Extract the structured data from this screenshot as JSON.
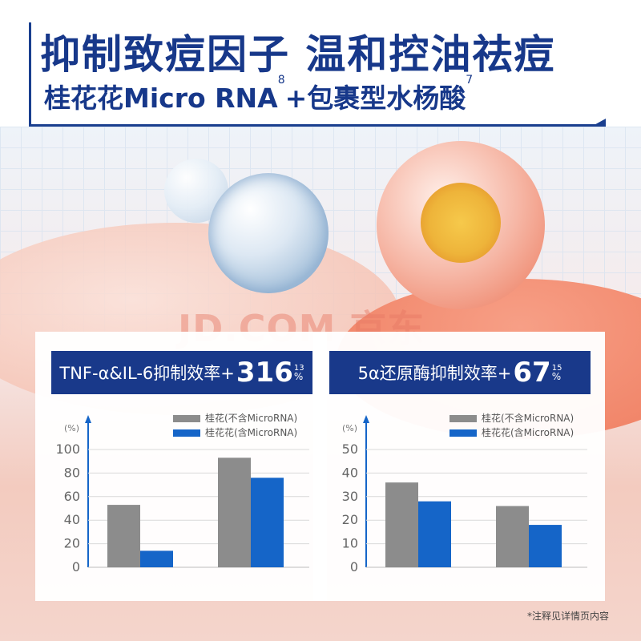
{
  "header": {
    "title": "抑制致痘因子 温和控油祛痘",
    "subtitle_main_a": "桂花花Micro RNA",
    "subtitle_sup_a": "8",
    "subtitle_main_b": "+包裹型水杨酸",
    "subtitle_sup_b": "7"
  },
  "watermark": "JD.COM 京东",
  "colors": {
    "gray": "#8c8c8c",
    "blue": "#1565c8",
    "navy": "#19398a"
  },
  "chart_data": [
    {
      "type": "bar",
      "header_text": "TNF-α&IL-6抑制效率+",
      "header_value": "316",
      "header_unit": "%",
      "header_sup": "13",
      "ylabel": "(%)",
      "ylim": [
        0,
        100
      ],
      "yticks": [
        0,
        20,
        40,
        60,
        80,
        100
      ],
      "tick_labels": [
        "0",
        "20",
        "40",
        "60",
        "80",
        "100"
      ],
      "categories": [
        "",
        ""
      ],
      "series": [
        {
          "name": "桂花(不含MicroRNA)",
          "color": "#8c8c8c",
          "values": [
            53,
            93
          ]
        },
        {
          "name": "桂花花(含MicroRNA)",
          "color": "#1565c8",
          "values": [
            14,
            76
          ]
        }
      ],
      "grid": true,
      "legend": "top-right"
    },
    {
      "type": "bar",
      "header_text": "5α还原酶抑制效率+",
      "header_value": "67",
      "header_unit": "%",
      "header_sup": "15",
      "ylabel": "(%)",
      "ylim": [
        0,
        50
      ],
      "yticks": [
        0,
        10,
        20,
        30,
        40,
        50
      ],
      "tick_labels": [
        "0",
        "10",
        "20",
        "30",
        "40",
        "50"
      ],
      "categories": [
        "",
        ""
      ],
      "series": [
        {
          "name": "桂花(不含MicroRNA)",
          "color": "#8c8c8c",
          "values": [
            36,
            26
          ]
        },
        {
          "name": "桂花花(含MicroRNA)",
          "color": "#1565c8",
          "values": [
            28,
            18
          ]
        }
      ],
      "grid": true,
      "legend": "top-right"
    }
  ],
  "footnote": "*注释见详情页内容"
}
